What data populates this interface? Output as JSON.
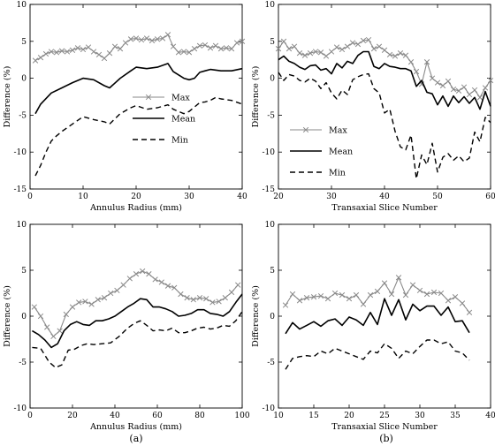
{
  "figure": {
    "caption_a": "(a)",
    "caption_b": "(b)"
  },
  "chart_data": [
    {
      "id": "top-left",
      "type": "line",
      "xlabel": "Annulus Radius (mm)",
      "ylabel": "Difference (%)",
      "xlim": [
        0,
        40
      ],
      "ylim": [
        -15,
        10
      ],
      "xticks": [
        0,
        10,
        20,
        30,
        40
      ],
      "yticks": [
        -15,
        -10,
        -5,
        0,
        5,
        10
      ],
      "legend": "center-right",
      "series": [
        {
          "name": "Max",
          "style": "max",
          "x": [
            1,
            2,
            3,
            4,
            5,
            6,
            7,
            8,
            9,
            10,
            11,
            12,
            13,
            14,
            15,
            16,
            17,
            18,
            19,
            20,
            21,
            22,
            23,
            24,
            25,
            26,
            27,
            28,
            29,
            30,
            31,
            32,
            33,
            34,
            35,
            36,
            37,
            38,
            39,
            40
          ],
          "y": [
            2.4,
            2.8,
            3.3,
            3.6,
            3.5,
            3.7,
            3.6,
            3.8,
            4.1,
            3.9,
            4.2,
            3.6,
            3.2,
            2.7,
            3.4,
            4.3,
            4.0,
            4.8,
            5.3,
            5.4,
            5.2,
            5.4,
            5.1,
            5.3,
            5.4,
            5.9,
            4.3,
            3.5,
            3.6,
            3.5,
            4.0,
            4.4,
            4.5,
            4.1,
            4.4,
            4.0,
            4.1,
            4.0,
            4.8,
            5.0
          ]
        },
        {
          "name": "Mean",
          "style": "mean",
          "x": [
            1,
            2,
            4,
            6,
            8,
            10,
            12,
            14,
            15,
            17,
            19,
            20,
            22,
            24,
            26,
            27,
            29,
            30,
            31,
            32,
            33,
            34,
            36,
            38,
            40
          ],
          "y": [
            -4.8,
            -3.5,
            -2.0,
            -1.3,
            -0.6,
            0.0,
            -0.2,
            -1.0,
            -1.3,
            0.0,
            1.0,
            1.5,
            1.3,
            1.5,
            2.0,
            0.9,
            0.0,
            -0.2,
            0.0,
            0.8,
            1.0,
            1.2,
            1.0,
            1.0,
            1.3
          ]
        },
        {
          "name": "Min",
          "style": "min",
          "x": [
            1,
            2,
            3,
            4,
            5,
            6,
            8,
            10,
            12,
            14,
            15,
            17,
            19,
            20,
            22,
            24,
            26,
            27,
            29,
            30,
            31,
            32,
            33,
            34,
            35,
            36,
            38,
            40
          ],
          "y": [
            -13.2,
            -11.8,
            -10.0,
            -8.5,
            -7.8,
            -7.2,
            -6.2,
            -5.2,
            -5.6,
            -5.9,
            -6.2,
            -4.8,
            -4.0,
            -3.7,
            -4.2,
            -4.0,
            -3.6,
            -4.2,
            -4.8,
            -4.5,
            -3.9,
            -3.3,
            -3.2,
            -3.0,
            -2.6,
            -2.8,
            -3.0,
            -3.5
          ]
        }
      ]
    },
    {
      "id": "top-right",
      "type": "line",
      "xlabel": "Transaxial Slice Number",
      "ylabel": "Difference (%)",
      "xlim": [
        20,
        60
      ],
      "ylim": [
        -15,
        10
      ],
      "xticks": [
        20,
        30,
        40,
        50,
        60
      ],
      "yticks": [
        -15,
        -10,
        -5,
        0,
        5,
        10
      ],
      "legend": "lower-left",
      "series": [
        {
          "name": "Max",
          "style": "max",
          "x": [
            20,
            21,
            22,
            23,
            24,
            25,
            26,
            27,
            28,
            29,
            30,
            31,
            32,
            33,
            34,
            35,
            36,
            37,
            38,
            39,
            40,
            41,
            42,
            43,
            44,
            45,
            46,
            47,
            48,
            49,
            50,
            51,
            52,
            53,
            54,
            55,
            56,
            57,
            58,
            59,
            60
          ],
          "y": [
            4.0,
            5.0,
            4.0,
            4.3,
            3.4,
            3.1,
            3.4,
            3.6,
            3.5,
            3.0,
            3.6,
            4.2,
            3.9,
            4.3,
            4.8,
            4.6,
            5.1,
            5.2,
            4.0,
            4.3,
            3.8,
            3.2,
            3.0,
            3.4,
            3.1,
            2.2,
            0.9,
            -0.8,
            2.2,
            0.0,
            -0.6,
            -1.0,
            -0.4,
            -1.5,
            -1.7,
            -1.2,
            -2.2,
            -1.6,
            -2.6,
            -1.3,
            -0.3
          ]
        },
        {
          "name": "Mean",
          "style": "mean",
          "x": [
            20,
            21,
            22,
            23,
            24,
            25,
            26,
            27,
            28,
            29,
            30,
            31,
            32,
            33,
            34,
            35,
            36,
            37,
            38,
            39,
            40,
            41,
            42,
            43,
            44,
            45,
            46,
            47,
            48,
            49,
            50,
            51,
            52,
            53,
            54,
            55,
            56,
            57,
            58,
            59,
            60
          ],
          "y": [
            2.5,
            3.0,
            2.3,
            2.0,
            1.5,
            1.2,
            1.7,
            1.8,
            1.1,
            1.3,
            0.6,
            2.0,
            1.4,
            2.3,
            2.0,
            3.1,
            3.6,
            3.6,
            1.6,
            1.3,
            2.0,
            1.6,
            1.5,
            1.3,
            1.3,
            1.0,
            -1.1,
            -0.3,
            -1.9,
            -2.1,
            -3.6,
            -2.4,
            -3.8,
            -2.4,
            -3.3,
            -2.5,
            -3.4,
            -2.6,
            -4.2,
            -1.8,
            -3.8
          ]
        },
        {
          "name": "Min",
          "style": "min",
          "x": [
            20,
            21,
            22,
            23,
            24,
            25,
            26,
            27,
            28,
            29,
            30,
            31,
            32,
            33,
            34,
            35,
            36,
            37,
            38,
            39,
            40,
            41,
            42,
            43,
            44,
            45,
            46,
            47,
            48,
            49,
            50,
            51,
            52,
            53,
            54,
            55,
            56,
            57,
            58,
            59,
            60
          ],
          "y": [
            0.8,
            -0.3,
            0.5,
            0.3,
            -0.3,
            -0.5,
            0.0,
            -0.4,
            -1.4,
            -0.6,
            -2.0,
            -2.8,
            -1.6,
            -2.2,
            -0.2,
            0.2,
            0.5,
            0.6,
            -1.4,
            -2.0,
            -4.7,
            -4.2,
            -7.2,
            -9.3,
            -9.7,
            -7.7,
            -13.6,
            -10.4,
            -11.7,
            -8.8,
            -12.7,
            -10.7,
            -10.2,
            -11.1,
            -10.5,
            -11.3,
            -10.8,
            -7.3,
            -8.6,
            -5.3,
            -6.0
          ]
        }
      ]
    },
    {
      "id": "bottom-left",
      "type": "line",
      "xlabel": "Annulus Radius (mm)",
      "ylabel": "Difference (%)",
      "xlim": [
        0,
        100
      ],
      "ylim": [
        -10,
        10
      ],
      "xticks": [
        0,
        20,
        40,
        60,
        80,
        100
      ],
      "yticks": [
        -10,
        -5,
        0,
        5,
        10
      ],
      "series": [
        {
          "name": "Max",
          "style": "max",
          "x": [
            2,
            5,
            8,
            11,
            14,
            17,
            20,
            23,
            26,
            29,
            32,
            35,
            38,
            41,
            44,
            47,
            50,
            53,
            56,
            59,
            62,
            65,
            68,
            71,
            74,
            77,
            80,
            83,
            86,
            89,
            92,
            95,
            98
          ],
          "y": [
            1.0,
            0.0,
            -1.2,
            -2.2,
            -1.6,
            0.2,
            1.0,
            1.5,
            1.6,
            1.3,
            1.8,
            2.0,
            2.5,
            2.8,
            3.4,
            4.1,
            4.6,
            4.9,
            4.6,
            4.0,
            3.7,
            3.3,
            3.1,
            2.4,
            2.0,
            1.8,
            2.0,
            1.9,
            1.5,
            1.6,
            2.0,
            2.6,
            3.4
          ]
        },
        {
          "name": "Mean",
          "style": "mean",
          "x": [
            1,
            4,
            7,
            10,
            13,
            16,
            19,
            22,
            25,
            28,
            31,
            34,
            37,
            40,
            43,
            46,
            49,
            52,
            55,
            58,
            61,
            64,
            67,
            70,
            73,
            76,
            79,
            82,
            85,
            88,
            91,
            94,
            97,
            100
          ],
          "y": [
            -1.6,
            -2.0,
            -2.6,
            -3.4,
            -3.0,
            -1.6,
            -0.9,
            -0.6,
            -0.9,
            -1.0,
            -0.5,
            -0.5,
            -0.3,
            0.0,
            0.5,
            1.0,
            1.4,
            1.9,
            1.8,
            1.0,
            1.0,
            0.8,
            0.5,
            0.0,
            0.1,
            0.3,
            0.7,
            0.7,
            0.3,
            0.2,
            0.0,
            0.5,
            1.5,
            2.4
          ]
        },
        {
          "name": "Min",
          "style": "min",
          "x": [
            1,
            5,
            9,
            12,
            15,
            18,
            21,
            24,
            27,
            30,
            34,
            38,
            42,
            46,
            49,
            52,
            55,
            58,
            61,
            64,
            67,
            70,
            73,
            76,
            79,
            82,
            85,
            88,
            91,
            94,
            97,
            100
          ],
          "y": [
            -3.4,
            -3.5,
            -5.0,
            -5.6,
            -5.3,
            -3.7,
            -3.6,
            -3.2,
            -3.0,
            -3.1,
            -3.0,
            -2.9,
            -2.2,
            -1.3,
            -0.8,
            -0.5,
            -1.0,
            -1.6,
            -1.5,
            -1.6,
            -1.3,
            -1.8,
            -1.8,
            -1.6,
            -1.3,
            -1.2,
            -1.4,
            -1.3,
            -1.0,
            -1.1,
            -0.5,
            0.5
          ]
        }
      ]
    },
    {
      "id": "bottom-right",
      "type": "line",
      "xlabel": "Transaxial Slice Number",
      "ylabel": "Difference (%)",
      "xlim": [
        10,
        40
      ],
      "ylim": [
        -10,
        10
      ],
      "xticks": [
        10,
        15,
        20,
        25,
        30,
        35,
        40
      ],
      "yticks": [
        -10,
        -5,
        0,
        5,
        10
      ],
      "series": [
        {
          "name": "Max",
          "style": "max",
          "x": [
            11,
            12,
            13,
            14,
            15,
            16,
            17,
            18,
            19,
            20,
            21,
            22,
            23,
            24,
            25,
            26,
            27,
            28,
            29,
            30,
            31,
            32,
            33,
            34,
            35,
            36,
            37
          ],
          "y": [
            1.2,
            2.4,
            1.7,
            2.0,
            2.1,
            2.2,
            1.9,
            2.5,
            2.3,
            1.9,
            2.3,
            1.3,
            2.3,
            2.7,
            3.6,
            2.4,
            4.2,
            2.3,
            3.4,
            2.8,
            2.4,
            2.6,
            2.5,
            1.7,
            2.1,
            1.4,
            0.4
          ]
        },
        {
          "name": "Mean",
          "style": "mean",
          "x": [
            11,
            12,
            13,
            14,
            15,
            16,
            17,
            18,
            19,
            20,
            21,
            22,
            23,
            24,
            25,
            26,
            27,
            28,
            29,
            30,
            31,
            32,
            33,
            34,
            35,
            36,
            37
          ],
          "y": [
            -1.9,
            -0.7,
            -1.4,
            -1.0,
            -0.6,
            -1.1,
            -0.5,
            -0.3,
            -1.0,
            -0.1,
            -0.4,
            -1.0,
            0.4,
            -0.9,
            1.9,
            0.1,
            1.8,
            -0.4,
            1.3,
            0.6,
            1.1,
            1.1,
            0.1,
            1.0,
            -0.6,
            -0.5,
            -1.8
          ]
        },
        {
          "name": "Min",
          "style": "min",
          "x": [
            11,
            12,
            13,
            14,
            15,
            16,
            17,
            18,
            19,
            20,
            21,
            22,
            23,
            24,
            25,
            26,
            27,
            28,
            29,
            30,
            31,
            32,
            33,
            34,
            35,
            36,
            37
          ],
          "y": [
            -5.8,
            -4.6,
            -4.4,
            -4.3,
            -4.4,
            -3.8,
            -4.1,
            -3.5,
            -3.8,
            -4.1,
            -4.4,
            -4.7,
            -3.8,
            -4.0,
            -3.0,
            -3.5,
            -4.6,
            -3.8,
            -4.1,
            -3.3,
            -2.6,
            -2.6,
            -3.0,
            -2.8,
            -3.8,
            -4.0,
            -4.8
          ]
        }
      ]
    }
  ]
}
